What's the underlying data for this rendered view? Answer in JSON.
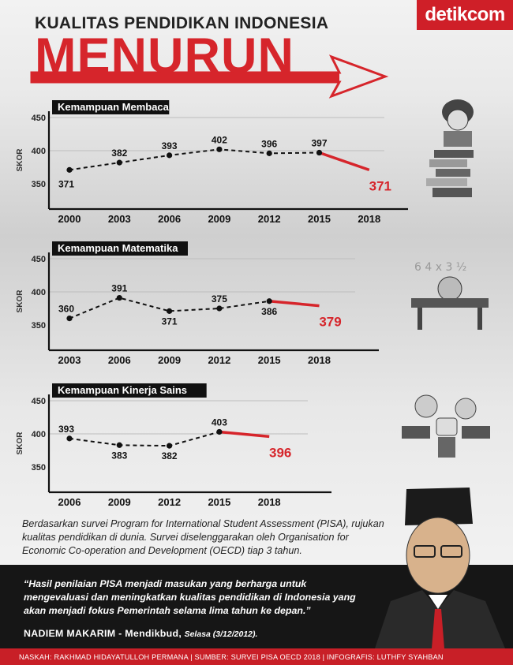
{
  "header": {
    "title": "KUALITAS PENDIDIKAN INDONESIA",
    "headline": "MENURUN",
    "logo": "detikcom"
  },
  "colors": {
    "accent": "#d6252b",
    "dark": "#111111",
    "footer": "#c81f27"
  },
  "chart_data": [
    {
      "type": "line",
      "title": "Kemampuan Membaca",
      "ylabel": "SKOR",
      "ylim": [
        350,
        450
      ],
      "yticks": [
        "450",
        "400",
        "350"
      ],
      "categories": [
        "2000",
        "2003",
        "2006",
        "2009",
        "2012",
        "2015",
        "2018"
      ],
      "values": [
        371,
        382,
        393,
        402,
        396,
        397,
        371
      ],
      "labels": [
        "371",
        "382",
        "393",
        "402",
        "396",
        "397",
        "371"
      ]
    },
    {
      "type": "line",
      "title": "Kemampuan Matematika",
      "ylabel": "SKOR",
      "ylim": [
        350,
        450
      ],
      "yticks": [
        "450",
        "400",
        "350"
      ],
      "categories": [
        "2003",
        "2006",
        "2009",
        "2012",
        "2015",
        "2018"
      ],
      "values": [
        360,
        391,
        371,
        375,
        386,
        379
      ],
      "labels": [
        "360",
        "391",
        "371",
        "375",
        "386",
        "379"
      ]
    },
    {
      "type": "line",
      "title": "Kemampuan Kinerja Sains",
      "ylabel": "SKOR",
      "ylim": [
        350,
        450
      ],
      "yticks": [
        "450",
        "400",
        "350"
      ],
      "categories": [
        "2006",
        "2009",
        "2012",
        "2015",
        "2018"
      ],
      "values": [
        393,
        383,
        382,
        403,
        396
      ],
      "labels": [
        "393",
        "383",
        "382",
        "403",
        "396"
      ]
    }
  ],
  "description": "Berdasarkan survei Program for International Student Assessment (PISA), rujukan kualitas pendidikan di dunia. Survei diselenggarakan oleh Organisation for Economic Co-operation and Development (OECD) tiap 3 tahun.",
  "quote": {
    "text": "“Hasil penilaian PISA menjadi masukan yang berharga untuk mengevaluasi dan meningkatkan kualitas pendidikan di Indonesia yang akan menjadi fokus Pemerintah selama lima tahun ke depan.”",
    "speaker": "NADIEM MAKARIM - Mendikbud,",
    "date": "Selasa (3/12/2012)."
  },
  "footer": "NASKAH: RAKHMAD HIDAYATULLOH PERMANA | SUMBER: SURVEI PISA OECD 2018 | INFOGRAFIS: LUTHFY SYAHBAN"
}
